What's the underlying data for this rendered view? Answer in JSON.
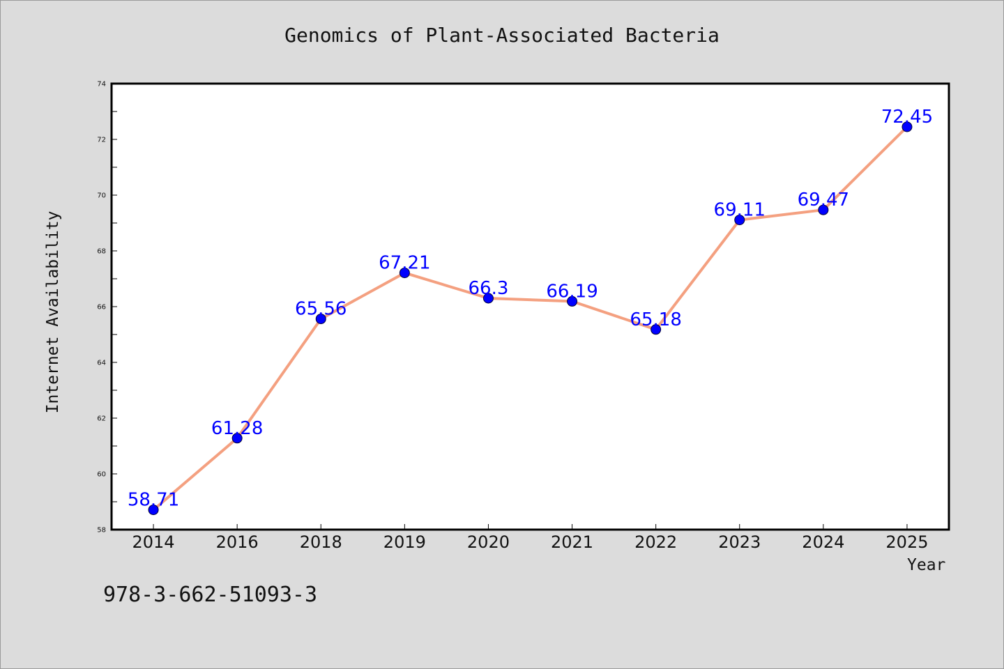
{
  "chart_data": {
    "type": "line",
    "title": "Genomics of Plant-Associated Bacteria",
    "xlabel": "Year",
    "ylabel": "Internet Availability",
    "categories": [
      "2014",
      "2016",
      "2018",
      "2019",
      "2020",
      "2021",
      "2022",
      "2023",
      "2024",
      "2025"
    ],
    "series": [
      {
        "values": [
          58.71,
          61.28,
          65.56,
          67.21,
          66.3,
          66.19,
          65.18,
          69.11,
          69.47,
          72.45
        ],
        "labels": [
          "58.71",
          "61.28",
          "65.56",
          "67.21",
          "66.3",
          "66.19",
          "65.18",
          "69.11",
          "69.47",
          "72.45"
        ]
      }
    ],
    "ylim": [
      58,
      74
    ],
    "yticks": [
      58,
      60,
      62,
      64,
      66,
      68,
      70,
      72,
      74
    ],
    "y_tick_labels": [
      "58",
      "60",
      "62",
      "64",
      "66",
      "68",
      "70",
      "72",
      "74"
    ],
    "grid": false,
    "line_color": "#f4a080",
    "marker_color": "#0000ff"
  },
  "footer_text": "978-3-662-51093-3"
}
